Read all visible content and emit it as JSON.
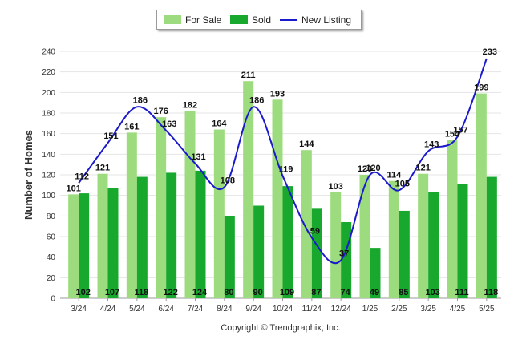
{
  "chart_data": {
    "type": "bar",
    "ylabel": "Number of Homes",
    "ylim": [
      0,
      240
    ],
    "yticks": [
      0,
      20,
      40,
      60,
      80,
      100,
      120,
      140,
      160,
      180,
      200,
      220,
      240
    ],
    "grid": true,
    "legend_position": "top-center",
    "categories": [
      "3/24",
      "4/24",
      "5/24",
      "6/24",
      "7/24",
      "8/24",
      "9/24",
      "10/24",
      "11/24",
      "12/24",
      "1/25",
      "2/25",
      "3/25",
      "4/25",
      "5/25"
    ],
    "series": [
      {
        "name": "For Sale",
        "kind": "bar",
        "color": "#9ddc7e",
        "values": [
          101,
          121,
          161,
          176,
          182,
          164,
          211,
          193,
          144,
          103,
          120,
          114,
          121,
          154,
          199
        ]
      },
      {
        "name": "Sold",
        "kind": "bar",
        "color": "#18a82e",
        "values": [
          102,
          107,
          118,
          122,
          124,
          80,
          90,
          109,
          87,
          74,
          49,
          85,
          103,
          111,
          118
        ]
      },
      {
        "name": "New Listing",
        "kind": "line",
        "color": "#1a1acc",
        "values": [
          112,
          151,
          186,
          163,
          131,
          108,
          186,
          119,
          59,
          37,
          120,
          105,
          143,
          157,
          233
        ]
      }
    ]
  },
  "footer": {
    "copyright": "Copyright © Trendgraphix, Inc."
  }
}
